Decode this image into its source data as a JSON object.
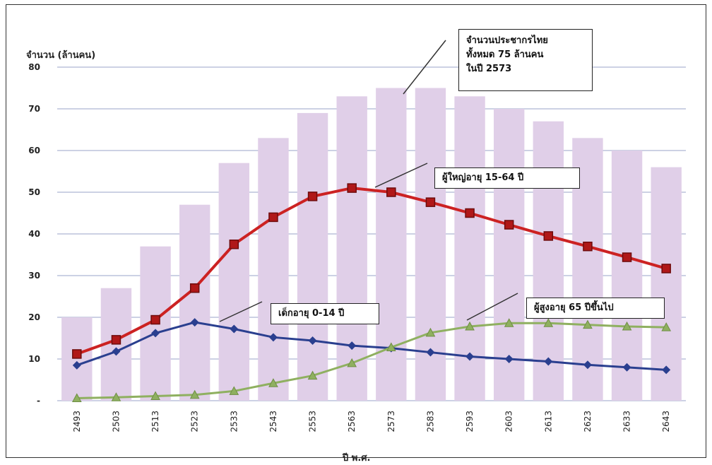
{
  "chart_data": {
    "type": "bar+line",
    "ylabel": "จำนวน (ล้านคน)",
    "xlabel": "ปี พ.ศ.",
    "ylim": [
      0,
      80
    ],
    "yticks": [
      "-",
      "10",
      "20",
      "30",
      "40",
      "50",
      "60",
      "70",
      "80"
    ],
    "categories": [
      "2493",
      "2503",
      "2513",
      "2523",
      "2533",
      "2543",
      "2553",
      "2563",
      "2573",
      "2583",
      "2593",
      "2603",
      "2613",
      "2623",
      "2633",
      "2643"
    ],
    "bars": {
      "color": "#e0cfe8",
      "values": [
        20,
        27,
        37,
        47,
        57,
        63,
        69,
        73,
        75,
        75,
        73,
        70,
        67,
        63,
        60,
        56
      ]
    },
    "series": [
      {
        "color": "#cc2222",
        "marker": "square",
        "values": [
          11.2,
          14.6,
          19.4,
          27.0,
          37.5,
          44.0,
          49.0,
          51.0,
          50.0,
          47.6,
          45.0,
          42.2,
          39.5,
          37.0,
          34.4,
          31.7
        ]
      },
      {
        "color": "#2a3f8f",
        "marker": "diamond",
        "values": [
          8.5,
          11.8,
          16.2,
          18.8,
          17.2,
          15.2,
          14.4,
          13.2,
          12.6,
          11.6,
          10.6,
          10.0,
          9.4,
          8.6,
          8.0,
          7.4
        ]
      },
      {
        "color": "#8fb060",
        "marker": "triangle",
        "values": [
          0.6,
          0.8,
          1.1,
          1.4,
          2.3,
          4.2,
          6.0,
          9.0,
          12.8,
          16.3,
          17.8,
          18.6,
          18.6,
          18.2,
          17.8,
          17.6
        ]
      }
    ],
    "annotations": {
      "total": "จำนวนประชากรไทย\nทั้งหมด 75 ล้านคน\nในปี 2573",
      "working": "ผู้ใหญ่อายุ 15-64 ปี",
      "children": "เด็กอายุ 0-14 ปี",
      "elderly": "ผู้สูงอายุ 65 ปีขึ้นไป"
    },
    "grid": true
  }
}
